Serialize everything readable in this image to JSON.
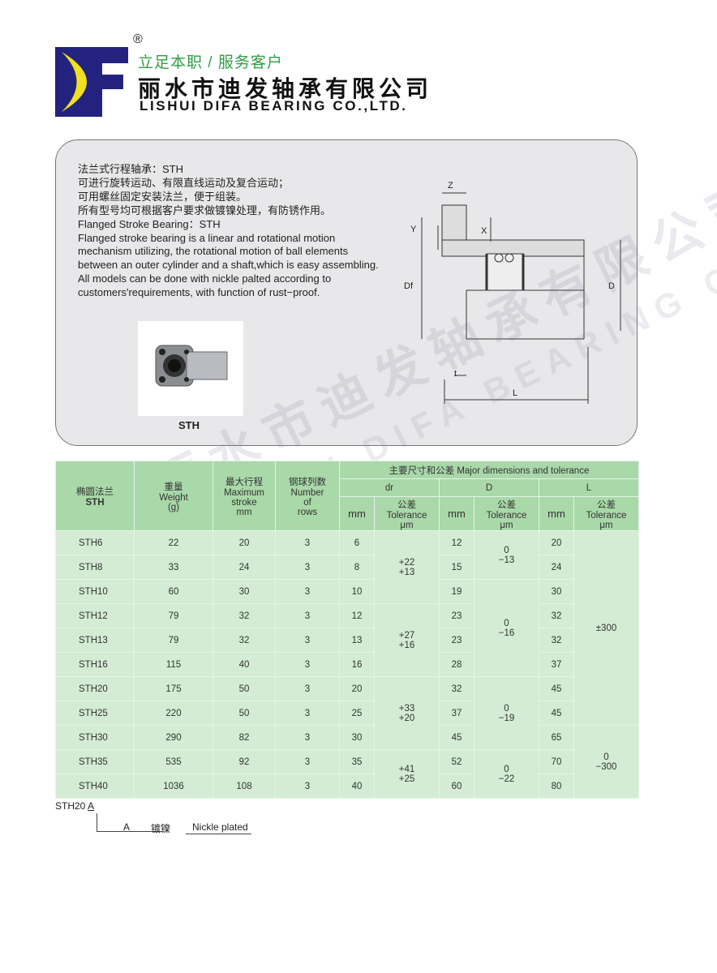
{
  "header": {
    "registered": "®",
    "slogan": "立足本职 / 服务客户",
    "company_cn": "丽水市迪发轴承有限公司",
    "company_en": "LISHUI DIFA BEARING CO.,LTD.",
    "logo_letters": "DF",
    "brand_colors": {
      "blue": "#23237f",
      "yellow": "#f0e020",
      "green": "#2f9e45"
    }
  },
  "description": {
    "lines": [
      "法兰式行程轴承：STH",
      "可进行旋转运动、有限直线运动及复合运动；",
      "可用螺丝固定安装法兰，便于组装。",
      "所有型号均可根据客户要求做镀镍处理，有防锈作用。",
      "Flanged Stroke Bearing：STH",
      "Flanged stroke bearing is a linear and rotational motion",
      "mechanism utilizing, the rotational motion of ball elements",
      "between an outer cylinder and a shaft,which is easy assembling.",
      "All models can be done with nickle palted according to",
      "customers'requirements, with function of rust−proof."
    ]
  },
  "photo_label": "STH",
  "diagram_labels": {
    "z": "Z",
    "y": "Y",
    "x": "X",
    "df": "Df",
    "d": "D",
    "t": "t",
    "l": "L"
  },
  "watermark": {
    "cn": "丽水市迪发轴承有限公司",
    "en": "LISHUI DIFA BEARING CO.,LTD."
  },
  "table": {
    "h_type_cn": "椭圆法兰",
    "h_type": "STH",
    "h_weight_cn": "重量",
    "h_weight": "Weight",
    "h_weight_unit": "(g)",
    "h_stroke_cn": "最大行程",
    "h_stroke1": "Maximum",
    "h_stroke2": "stroke",
    "h_stroke_unit": "mm",
    "h_rows_cn": "钢球列数",
    "h_rows1": "Number",
    "h_rows2": "of",
    "h_rows3": "rows",
    "h_major": "主要尺寸和公差 Major dimensions and tolerance",
    "h_dr": "dr",
    "h_D": "D",
    "h_L": "L",
    "h_mm": "mm",
    "h_tol_cn": "公差",
    "h_tol": "Tolerance",
    "h_tol_unit": "μm",
    "rows": [
      {
        "model": "STH6",
        "weight": "22",
        "stroke": "20",
        "rows": "3",
        "dr": "6",
        "D": "12",
        "L": "20"
      },
      {
        "model": "STH8",
        "weight": "33",
        "stroke": "24",
        "rows": "3",
        "dr": "8",
        "D": "15",
        "L": "24"
      },
      {
        "model": "STH10",
        "weight": "60",
        "stroke": "30",
        "rows": "3",
        "dr": "10",
        "D": "19",
        "L": "30"
      },
      {
        "model": "STH12",
        "weight": "79",
        "stroke": "32",
        "rows": "3",
        "dr": "12",
        "D": "23",
        "L": "32"
      },
      {
        "model": "STH13",
        "weight": "79",
        "stroke": "32",
        "rows": "3",
        "dr": "13",
        "D": "23",
        "L": "32"
      },
      {
        "model": "STH16",
        "weight": "115",
        "stroke": "40",
        "rows": "3",
        "dr": "16",
        "D": "28",
        "L": "37"
      },
      {
        "model": "STH20",
        "weight": "175",
        "stroke": "50",
        "rows": "3",
        "dr": "20",
        "D": "32",
        "L": "45"
      },
      {
        "model": "STH25",
        "weight": "220",
        "stroke": "50",
        "rows": "3",
        "dr": "25",
        "D": "37",
        "L": "45"
      },
      {
        "model": "STH30",
        "weight": "290",
        "stroke": "82",
        "rows": "3",
        "dr": "30",
        "D": "45",
        "L": "65"
      },
      {
        "model": "STH35",
        "weight": "535",
        "stroke": "92",
        "rows": "3",
        "dr": "35",
        "D": "52",
        "L": "70"
      },
      {
        "model": "STH40",
        "weight": "1036",
        "stroke": "108",
        "rows": "3",
        "dr": "40",
        "D": "60",
        "L": "80"
      }
    ],
    "dr_tol": [
      {
        "upper": "+22",
        "lower": "+13",
        "span": 3
      },
      {
        "upper": "+27",
        "lower": "+16",
        "span": 3
      },
      {
        "upper": "+33",
        "lower": "+20",
        "span": 3
      },
      {
        "upper": "+41",
        "lower": "+25",
        "span": 2
      }
    ],
    "D_tol": [
      {
        "upper": "0",
        "lower": "−13",
        "span": 2
      },
      {
        "upper": "0",
        "lower": "−16",
        "span": 4
      },
      {
        "upper": "0",
        "lower": "−19",
        "span": 3
      },
      {
        "upper": "0",
        "lower": "−22",
        "span": 2
      }
    ],
    "L_tol": [
      {
        "upper": "±300",
        "lower": "",
        "span": 8
      },
      {
        "upper": "0",
        "lower": "−300",
        "span": 3
      }
    ]
  },
  "code_note": {
    "code": "STH20",
    "suffix": "A",
    "option": "A",
    "option_cn": "镀镍",
    "option_en": "Nickle plated"
  }
}
